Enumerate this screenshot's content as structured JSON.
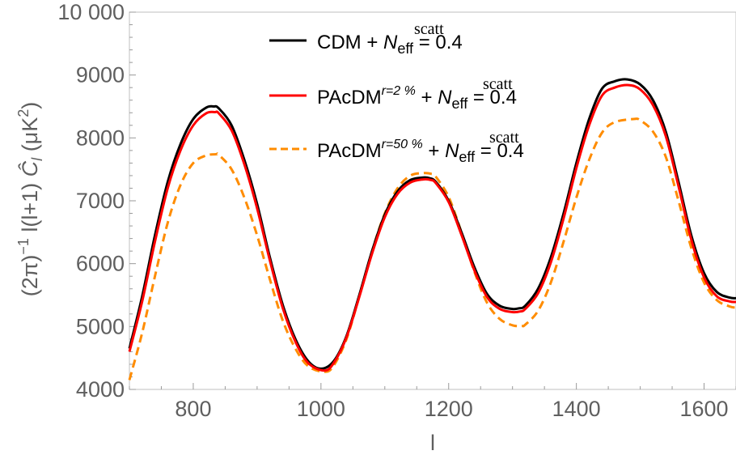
{
  "chart_data": {
    "type": "line",
    "xlabel": "l",
    "ylabel": {
      "prefix": "(2π)",
      "exp": "−1",
      "mid": " l(l+1) ",
      "hat": "Ĉ",
      "sub": "l",
      "units": " (μK",
      "units_exp": "2",
      "units_close": ")"
    },
    "xlim": [
      700,
      1650
    ],
    "ylim": [
      4000,
      10000
    ],
    "xticks": [
      800,
      1000,
      1200,
      1400,
      1600
    ],
    "xtick_labels": [
      "800",
      "1000",
      "1200",
      "1400",
      "1600"
    ],
    "yticks": [
      4000,
      5000,
      6000,
      7000,
      8000,
      9000,
      10000
    ],
    "ytick_labels": [
      "4000",
      "5000",
      "6000",
      "7000",
      "8000",
      "9000",
      "10 000"
    ],
    "grid": false,
    "legend_position": "top-center",
    "series": [
      {
        "label_main": "CDM + ",
        "label_sup": "",
        "color": "#000000",
        "dash": "solid",
        "x": [
          700,
          720,
          740,
          760,
          780,
          800,
          820,
          832,
          840,
          860,
          880,
          900,
          920,
          940,
          960,
          980,
          1000,
          1020,
          1040,
          1060,
          1080,
          1100,
          1120,
          1140,
          1160,
          1170,
          1180,
          1200,
          1220,
          1240,
          1260,
          1280,
          1300,
          1310,
          1320,
          1340,
          1360,
          1380,
          1400,
          1420,
          1440,
          1460,
          1480,
          1500,
          1520,
          1540,
          1560,
          1580,
          1600,
          1620,
          1640,
          1650
        ],
        "y": [
          4650,
          5480,
          6450,
          7300,
          7900,
          8300,
          8480,
          8500,
          8470,
          8200,
          7650,
          6950,
          6100,
          5350,
          4800,
          4450,
          4330,
          4450,
          4850,
          5500,
          6200,
          6780,
          7150,
          7330,
          7370,
          7360,
          7300,
          7000,
          6500,
          5950,
          5520,
          5330,
          5280,
          5290,
          5330,
          5600,
          6100,
          6800,
          7600,
          8300,
          8780,
          8900,
          8930,
          8850,
          8600,
          8100,
          7300,
          6450,
          5850,
          5550,
          5460,
          5450
        ]
      },
      {
        "label_main": "PAcDM",
        "label_sup": "r=2 %",
        "color": "#ff0000",
        "dash": "solid",
        "x": [
          700,
          720,
          740,
          760,
          780,
          800,
          820,
          834,
          840,
          860,
          880,
          900,
          920,
          940,
          960,
          980,
          1005,
          1020,
          1040,
          1060,
          1080,
          1100,
          1120,
          1140,
          1160,
          1172,
          1180,
          1200,
          1220,
          1240,
          1260,
          1280,
          1300,
          1312,
          1320,
          1340,
          1360,
          1380,
          1400,
          1420,
          1440,
          1460,
          1482,
          1500,
          1520,
          1540,
          1560,
          1580,
          1600,
          1620,
          1640,
          1650
        ],
        "y": [
          4600,
          5400,
          6350,
          7200,
          7800,
          8200,
          8390,
          8410,
          8390,
          8120,
          7580,
          6880,
          6050,
          5300,
          4760,
          4420,
          4300,
          4420,
          4830,
          5470,
          6160,
          6740,
          7110,
          7290,
          7340,
          7330,
          7280,
          6980,
          6460,
          5900,
          5470,
          5280,
          5230,
          5240,
          5280,
          5530,
          6020,
          6720,
          7520,
          8200,
          8670,
          8800,
          8840,
          8770,
          8520,
          8030,
          7230,
          6380,
          5780,
          5480,
          5400,
          5390
        ]
      },
      {
        "label_main": "PAcDM",
        "label_sup": "r=50 %",
        "color": "#ff8c00",
        "dash": "dashed",
        "x": [
          700,
          720,
          740,
          760,
          780,
          800,
          820,
          836,
          840,
          860,
          880,
          900,
          920,
          940,
          960,
          980,
          1006,
          1020,
          1040,
          1060,
          1080,
          1100,
          1120,
          1140,
          1160,
          1172,
          1180,
          1200,
          1220,
          1240,
          1260,
          1280,
          1300,
          1314,
          1320,
          1340,
          1360,
          1380,
          1400,
          1420,
          1440,
          1460,
          1490,
          1500,
          1520,
          1540,
          1560,
          1580,
          1600,
          1620,
          1640,
          1650
        ],
        "y": [
          4150,
          4900,
          5800,
          6650,
          7250,
          7600,
          7720,
          7740,
          7730,
          7500,
          7050,
          6450,
          5750,
          5100,
          4650,
          4370,
          4280,
          4380,
          4800,
          5480,
          6200,
          6800,
          7200,
          7400,
          7440,
          7430,
          7380,
          7060,
          6500,
          5880,
          5380,
          5120,
          5020,
          5010,
          5030,
          5250,
          5700,
          6350,
          7050,
          7650,
          8080,
          8250,
          8300,
          8280,
          8100,
          7700,
          7000,
          6250,
          5700,
          5420,
          5320,
          5300
        ]
      }
    ],
    "legend_suffix": {
      "plus": " + ",
      "n": "N",
      "n_sub": "eff",
      "n_sup": "scatt",
      "value": " = 0.4"
    }
  }
}
